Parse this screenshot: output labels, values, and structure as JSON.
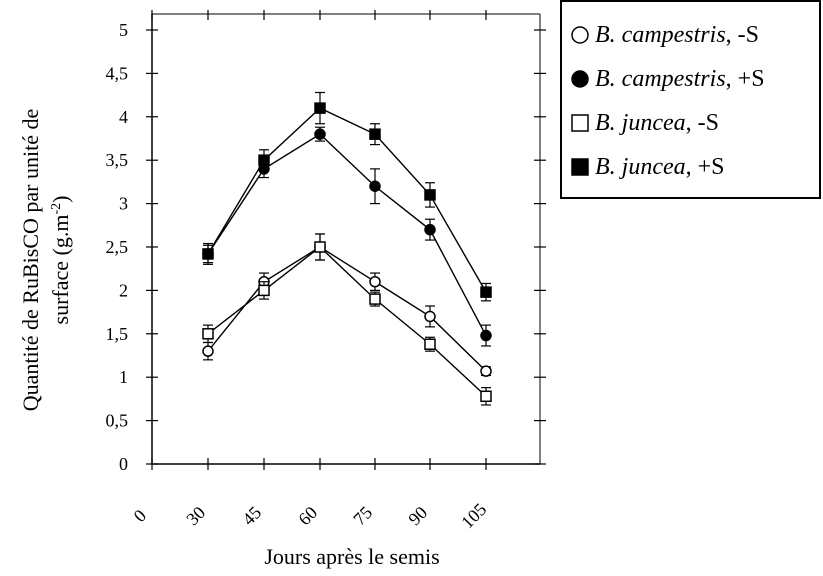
{
  "chart_data": {
    "type": "line",
    "title": "",
    "xlabel": "Jours après le semis",
    "ylabel_line1": "Quantité de  RuBisCO par unité de",
    "ylabel_line2_main": "surface (g.m",
    "ylabel_line2_sup": "-2",
    "ylabel_line2_end": ")",
    "x_ticks": [
      "0",
      "30",
      "45",
      "60",
      "75",
      "90",
      "105"
    ],
    "y_ticks": [
      "0",
      "0,5",
      "1",
      "1,5",
      "2",
      "2,5",
      "3",
      "3,5",
      "4",
      "4,5",
      "5"
    ],
    "ylim": [
      0,
      5
    ],
    "x": [
      30,
      45,
      60,
      75,
      90,
      105
    ],
    "legend_position": "top-right",
    "series": [
      {
        "name": "campestris -S",
        "legend_species": "B. campestris",
        "legend_suffix": ", -S",
        "marker": "open-circle",
        "values": [
          1.3,
          2.1,
          2.5,
          2.1,
          1.7,
          1.07
        ],
        "errors": [
          0.1,
          0.1,
          0.15,
          0.1,
          0.12,
          0.05
        ]
      },
      {
        "name": "campestris +S",
        "legend_species": "B. campestris",
        "legend_suffix": ", +S",
        "marker": "filled-circle",
        "values": [
          2.42,
          3.4,
          3.8,
          3.2,
          2.7,
          1.48
        ],
        "errors": [
          0.1,
          0.1,
          0.08,
          0.2,
          0.12,
          0.12
        ]
      },
      {
        "name": "juncea -S",
        "legend_species": "B. juncea",
        "legend_suffix": ", -S",
        "marker": "open-square",
        "values": [
          1.5,
          2.0,
          2.5,
          1.9,
          1.38,
          0.78
        ],
        "errors": [
          0.1,
          0.1,
          0.15,
          0.08,
          0.08,
          0.1
        ]
      },
      {
        "name": "juncea +S",
        "legend_species": "B. juncea",
        "legend_suffix": ", +S",
        "marker": "filled-square",
        "values": [
          2.42,
          3.5,
          4.1,
          3.8,
          3.1,
          1.98
        ],
        "errors": [
          0.12,
          0.12,
          0.18,
          0.12,
          0.14,
          0.1
        ]
      }
    ]
  }
}
